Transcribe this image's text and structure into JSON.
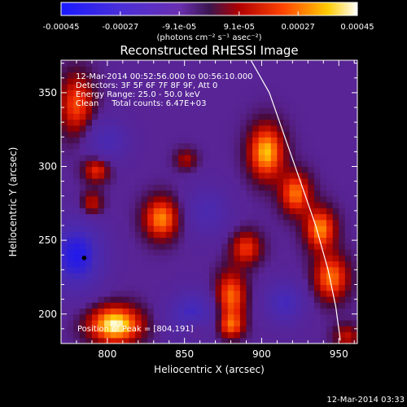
{
  "chart_data": {
    "type": "heatmap",
    "title": "Reconstructed RHESSI Image",
    "xlabel": "Heliocentric X (arcsec)",
    "ylabel": "Heliocentric Y (arcsec)",
    "xlim": [
      770,
      962
    ],
    "ylim": [
      180,
      372
    ],
    "xticks": [
      800,
      850,
      900,
      950
    ],
    "yticks": [
      200,
      250,
      300,
      350
    ],
    "colorbar": {
      "unit_label": "(photons cm⁻² s⁻¹ asec⁻²)",
      "range": [
        -0.00045,
        0.00045
      ],
      "tick_labels": [
        "-0.00045",
        "-0.00027",
        "-9.1e-05",
        "9.1e-05",
        "0.00027",
        "0.00045"
      ],
      "tick_values": [
        -0.00045,
        -0.00027,
        -9.1e-05,
        9.1e-05,
        0.00027,
        0.00045
      ]
    },
    "info_lines": [
      "12-Mar-2014 00:52:56.000 to 00:56:10.000",
      "Detectors: 3F 5F 6F 7F 8F 9F, Att 0",
      "Energy Range: 25.0 - 50.0 keV",
      "Clean     Total counts: 6.47E+03"
    ],
    "peak_label": "Position of Peak = [804,191]",
    "peak": [
      804,
      191
    ],
    "limb_marker": [
      785,
      238
    ],
    "timestamp": "12-Mar-2014 03:33",
    "limb_curve": [
      [
        893,
        372
      ],
      [
        905,
        350
      ],
      [
        915,
        320
      ],
      [
        925,
        290
      ],
      [
        935,
        260
      ],
      [
        943,
        230
      ],
      [
        948,
        205
      ],
      [
        951,
        182
      ]
    ],
    "sources": [
      {
        "x": 805,
        "y": 193,
        "amp": 1.0,
        "sx": 12,
        "sy": 9
      },
      {
        "x": 835,
        "y": 265,
        "amp": 0.75,
        "sx": 8,
        "sy": 10
      },
      {
        "x": 780,
        "y": 342,
        "amp": 0.6,
        "sx": 8,
        "sy": 15
      },
      {
        "x": 903,
        "y": 310,
        "amp": 0.85,
        "sx": 8,
        "sy": 13
      },
      {
        "x": 922,
        "y": 282,
        "amp": 0.7,
        "sx": 7,
        "sy": 10
      },
      {
        "x": 938,
        "y": 258,
        "amp": 0.75,
        "sx": 7,
        "sy": 10
      },
      {
        "x": 945,
        "y": 225,
        "amp": 0.7,
        "sx": 8,
        "sy": 11
      },
      {
        "x": 880,
        "y": 212,
        "amp": 0.7,
        "sx": 7,
        "sy": 12
      },
      {
        "x": 880,
        "y": 192,
        "amp": 0.55,
        "sx": 6,
        "sy": 6
      },
      {
        "x": 793,
        "y": 298,
        "amp": 0.55,
        "sx": 6,
        "sy": 6
      },
      {
        "x": 790,
        "y": 275,
        "amp": 0.45,
        "sx": 5,
        "sy": 6
      },
      {
        "x": 890,
        "y": 245,
        "amp": 0.55,
        "sx": 7,
        "sy": 8
      },
      {
        "x": 851,
        "y": 305,
        "amp": 0.35,
        "sx": 5,
        "sy": 5
      },
      {
        "x": 857,
        "y": 190,
        "amp": 0.35,
        "sx": 6,
        "sy": 5
      },
      {
        "x": 955,
        "y": 185,
        "amp": 0.4,
        "sx": 6,
        "sy": 6
      },
      {
        "x": 780,
        "y": 240,
        "amp": -0.85,
        "sx": 12,
        "sy": 16
      },
      {
        "x": 855,
        "y": 200,
        "amp": -0.6,
        "sx": 11,
        "sy": 11
      },
      {
        "x": 915,
        "y": 208,
        "amp": -0.55,
        "sx": 9,
        "sy": 10
      },
      {
        "x": 800,
        "y": 318,
        "amp": -0.45,
        "sx": 10,
        "sy": 10
      },
      {
        "x": 865,
        "y": 270,
        "amp": -0.4,
        "sx": 10,
        "sy": 12
      }
    ]
  }
}
